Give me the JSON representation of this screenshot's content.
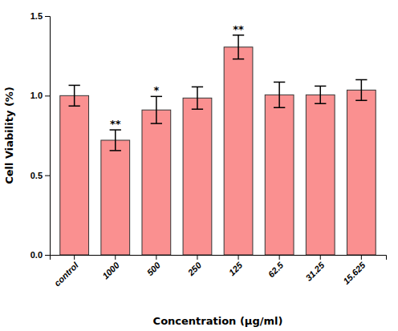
{
  "chart_data": {
    "type": "bar",
    "categories": [
      "control",
      "1000",
      "500",
      "250",
      "125",
      "62.5",
      "31.25",
      "15.625"
    ],
    "values": [
      1.0,
      0.72,
      0.91,
      0.985,
      1.305,
      1.005,
      1.005,
      1.035
    ],
    "errors": [
      0.065,
      0.065,
      0.085,
      0.07,
      0.075,
      0.08,
      0.055,
      0.065
    ],
    "color": "#FA9090",
    "annotations": [
      {
        "x": "1000",
        "text": "**"
      },
      {
        "x": "500",
        "text": "*"
      },
      {
        "x": "125",
        "text": "**"
      }
    ],
    "xlabel": "Concentration (μg/ml)",
    "ylabel": "Cell Viability (%)",
    "ylim": [
      0,
      1.5
    ],
    "yticks": [
      {
        "value": 0,
        "label": "0.0"
      },
      0.5,
      {
        "value": 1,
        "label": "1.0"
      },
      1.5
    ],
    "grid": false
  }
}
